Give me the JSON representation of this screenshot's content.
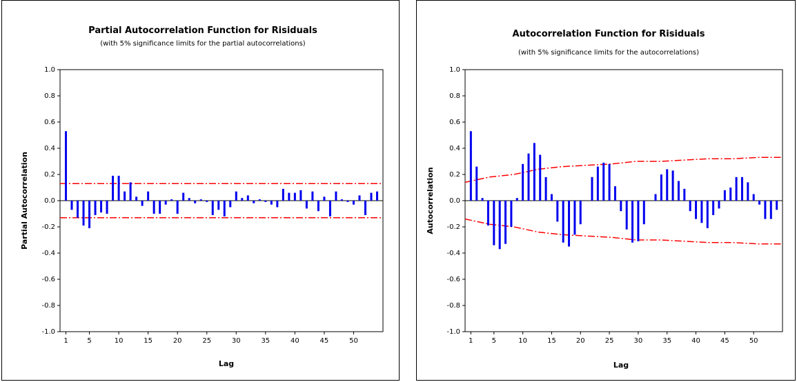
{
  "colors": {
    "bar": "#0000ee",
    "limit": "#ff0000",
    "axis": "#000000",
    "frame": "#000000"
  },
  "chart_data": [
    {
      "type": "bar",
      "title": "Partial Autocorrelation Function for Risiduals",
      "subtitle": "(with 5% significance limits for the partial autocorrelations)",
      "xlabel": "Lag",
      "ylabel": "Partial Autocorrelation",
      "ylim": [
        -1.0,
        1.0
      ],
      "xlim": [
        0,
        55
      ],
      "yticks": [
        "1.0",
        "0.8",
        "0.6",
        "0.4",
        "0.2",
        "0.0",
        "-0.2",
        "-0.4",
        "-0.6",
        "-0.8",
        "-1.0"
      ],
      "ytick_values": [
        1.0,
        0.8,
        0.6,
        0.4,
        0.2,
        0.0,
        -0.2,
        -0.4,
        -0.6,
        -0.8,
        -1.0
      ],
      "xticks": [
        "1",
        "5",
        "10",
        "15",
        "20",
        "25",
        "30",
        "35",
        "40",
        "45",
        "50"
      ],
      "xtick_values": [
        1,
        5,
        10,
        15,
        20,
        25,
        30,
        35,
        40,
        45,
        50
      ],
      "values": [
        0.53,
        -0.07,
        -0.13,
        -0.19,
        -0.21,
        -0.11,
        -0.09,
        -0.1,
        0.19,
        0.19,
        0.07,
        0.14,
        0.03,
        -0.04,
        0.07,
        -0.1,
        -0.1,
        -0.03,
        0.01,
        -0.1,
        0.06,
        0.02,
        -0.02,
        0.01,
        -0.01,
        -0.11,
        -0.07,
        -0.12,
        -0.05,
        0.07,
        0.02,
        0.04,
        -0.02,
        0.01,
        -0.01,
        -0.03,
        -0.05,
        0.09,
        0.06,
        0.06,
        0.08,
        -0.06,
        0.07,
        -0.08,
        0.03,
        -0.12,
        0.07,
        0.01,
        -0.01,
        -0.03,
        0.04,
        -0.11,
        0.06,
        0.07
      ],
      "upper_limit": [
        0.13,
        0.13
      ],
      "lower_limit": [
        -0.13,
        -0.13
      ]
    },
    {
      "type": "bar",
      "title": "Autocorrelation Function for Risiduals",
      "subtitle": "(with 5% significance limits for the autocorrelations)",
      "xlabel": "Lag",
      "ylabel": "Autocorrelation",
      "ylim": [
        -1.0,
        1.0
      ],
      "xlim": [
        0,
        55
      ],
      "yticks": [
        "1.0",
        "0.8",
        "0.6",
        "0.4",
        "0.2",
        "0.0",
        "-0.2",
        "-0.4",
        "-0.6",
        "-0.8",
        "-1.0"
      ],
      "ytick_values": [
        1.0,
        0.8,
        0.6,
        0.4,
        0.2,
        0.0,
        -0.2,
        -0.4,
        -0.6,
        -0.8,
        -1.0
      ],
      "xticks": [
        "1",
        "5",
        "10",
        "15",
        "20",
        "25",
        "30",
        "35",
        "40",
        "45",
        "50"
      ],
      "xtick_values": [
        1,
        5,
        10,
        15,
        20,
        25,
        30,
        35,
        40,
        45,
        50
      ],
      "values": [
        0.53,
        0.26,
        0.02,
        -0.19,
        -0.34,
        -0.37,
        -0.33,
        -0.2,
        0.02,
        0.28,
        0.36,
        0.44,
        0.35,
        0.18,
        0.05,
        -0.16,
        -0.32,
        -0.35,
        -0.26,
        -0.18,
        0.0,
        0.18,
        0.26,
        0.29,
        0.28,
        0.11,
        -0.08,
        -0.22,
        -0.32,
        -0.31,
        -0.18,
        0.0,
        0.05,
        0.2,
        0.24,
        0.23,
        0.15,
        0.09,
        -0.08,
        -0.14,
        -0.17,
        -0.21,
        -0.11,
        -0.06,
        0.08,
        0.1,
        0.18,
        0.18,
        0.14,
        0.05,
        -0.03,
        -0.14,
        -0.14,
        -0.07
      ],
      "upper_limit": [
        0.14,
        0.18,
        0.2,
        0.24,
        0.26,
        0.27,
        0.28,
        0.3,
        0.3,
        0.31,
        0.32,
        0.32,
        0.33,
        0.33
      ],
      "lower_limit": [
        -0.14,
        -0.18,
        -0.2,
        -0.24,
        -0.26,
        -0.27,
        -0.28,
        -0.3,
        -0.3,
        -0.31,
        -0.32,
        -0.32,
        -0.33,
        -0.33
      ]
    }
  ]
}
